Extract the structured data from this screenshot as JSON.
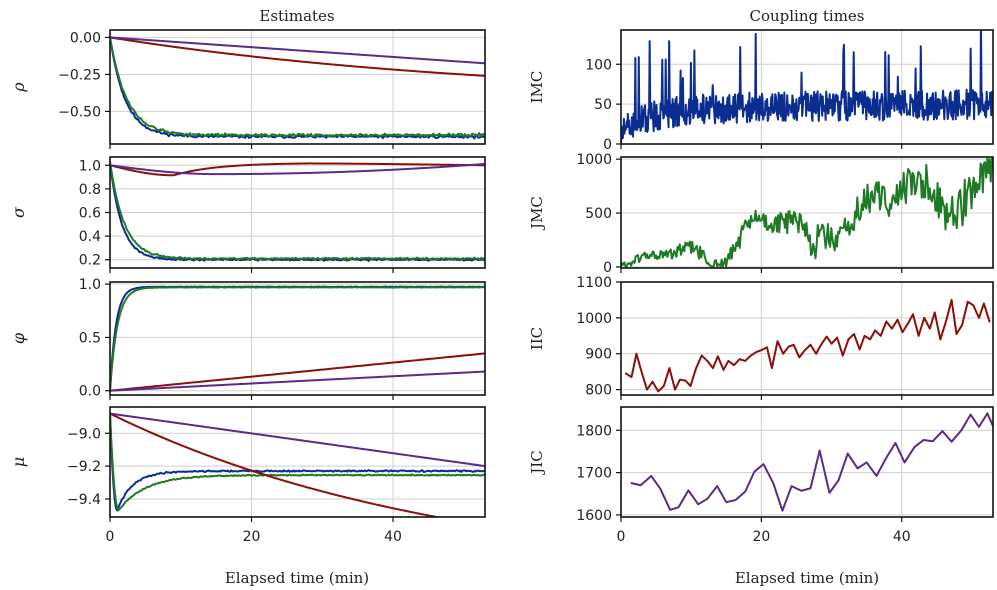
{
  "colors": {
    "blue": "#0b2d8f",
    "green": "#1e7a24",
    "red": "#8b0f0a",
    "purple": "#5a2a8c"
  },
  "column_titles": {
    "left": "Estimates",
    "right": "Coupling times"
  },
  "xlabels": {
    "left": "Elapsed time (min)",
    "right": "Elapsed time (min)"
  },
  "chart_data": [
    {
      "id": "rho",
      "type": "line",
      "column": "left",
      "row": 0,
      "ylabel": "ρ",
      "ylabel_style": "greek",
      "xlim": [
        0,
        53
      ],
      "ylim": [
        -0.72,
        0.05
      ],
      "yticks": [
        0.0,
        -0.25,
        -0.5
      ],
      "ytick_labels": [
        "0.00",
        "−0.25",
        "−0.50"
      ],
      "xticks": [
        0,
        20,
        40
      ],
      "xtick_labels": [
        "0",
        "20",
        "40"
      ],
      "series": [
        {
          "name": "blue",
          "color": "#0b2d8f",
          "curve": {
            "kind": "decay",
            "start": 0.0,
            "end": -0.67,
            "tau": 2.2,
            "noise": 0.008,
            "seed": 11
          }
        },
        {
          "name": "green",
          "color": "#1e7a24",
          "curve": {
            "kind": "decay",
            "start": 0.0,
            "end": -0.66,
            "tau": 2.4,
            "noise": 0.008,
            "seed": 12
          }
        },
        {
          "name": "red",
          "color": "#8b0f0a",
          "curve": {
            "kind": "decay",
            "start": 0.0,
            "end": -0.42,
            "tau": 55,
            "noise": 0,
            "seed": 1
          }
        },
        {
          "name": "purple",
          "color": "#5a2a8c",
          "curve": {
            "kind": "linear",
            "start": 0.0,
            "end": -0.175,
            "noise": 0,
            "seed": 1
          }
        }
      ]
    },
    {
      "id": "sigma",
      "type": "line",
      "column": "left",
      "row": 1,
      "ylabel": "σ",
      "ylabel_style": "greek",
      "xlim": [
        0,
        53
      ],
      "ylim": [
        0.13,
        1.07
      ],
      "yticks": [
        0.2,
        0.4,
        0.6,
        0.8,
        1.0
      ],
      "ytick_labels": [
        "0.2",
        "0.4",
        "0.6",
        "0.8",
        "1.0"
      ],
      "xticks": [
        0,
        20,
        40
      ],
      "xtick_labels": [
        "0",
        "20",
        "40"
      ],
      "series": [
        {
          "name": "blue",
          "color": "#0b2d8f",
          "curve": {
            "kind": "decay",
            "start": 1.02,
            "end": 0.2,
            "tau": 1.7,
            "noise": 0.006,
            "seed": 21
          }
        },
        {
          "name": "green",
          "color": "#1e7a24",
          "curve": {
            "kind": "decay",
            "start": 1.03,
            "end": 0.21,
            "tau": 2.0,
            "noise": 0.006,
            "seed": 22
          }
        },
        {
          "name": "red",
          "color": "#8b0f0a",
          "curve": {
            "kind": "sigma_red",
            "noise": 0,
            "seed": 1
          }
        },
        {
          "name": "purple",
          "color": "#5a2a8c",
          "curve": {
            "kind": "sigma_purple",
            "noise": 0,
            "seed": 1
          }
        }
      ]
    },
    {
      "id": "phi",
      "type": "line",
      "column": "left",
      "row": 2,
      "ylabel": "φ",
      "ylabel_style": "greek",
      "xlim": [
        0,
        53
      ],
      "ylim": [
        -0.04,
        1.02
      ],
      "yticks": [
        0.0,
        0.5,
        1.0
      ],
      "ytick_labels": [
        "0.0",
        "0.5",
        "1.0"
      ],
      "xticks": [
        0,
        20,
        40
      ],
      "xtick_labels": [
        "0",
        "20",
        "40"
      ],
      "series": [
        {
          "name": "blue",
          "color": "#0b2d8f",
          "curve": {
            "kind": "decay",
            "start": 0.0,
            "end": 0.975,
            "tau": 0.85,
            "noise": 0.002,
            "seed": 31
          }
        },
        {
          "name": "green",
          "color": "#1e7a24",
          "curve": {
            "kind": "decay",
            "start": 0.0,
            "end": 0.97,
            "tau": 1.05,
            "noise": 0.002,
            "seed": 32
          }
        },
        {
          "name": "red",
          "color": "#8b0f0a",
          "curve": {
            "kind": "linear",
            "start": 0.0,
            "end": 0.35,
            "noise": 0,
            "seed": 1
          }
        },
        {
          "name": "purple",
          "color": "#5a2a8c",
          "curve": {
            "kind": "linear",
            "start": 0.0,
            "end": 0.18,
            "noise": 0,
            "seed": 1
          }
        }
      ]
    },
    {
      "id": "mu",
      "type": "line",
      "column": "left",
      "row": 3,
      "ylabel": "μ",
      "ylabel_style": "greek",
      "xlim": [
        0,
        53
      ],
      "ylim": [
        -9.51,
        -8.84
      ],
      "yticks": [
        -9.0,
        -9.2,
        -9.4
      ],
      "ytick_labels": [
        "−9.0",
        "−9.2",
        "−9.4"
      ],
      "xticks": [
        0,
        20,
        40
      ],
      "xtick_labels": [
        "0",
        "20",
        "40"
      ],
      "series": [
        {
          "name": "blue",
          "color": "#0b2d8f",
          "curve": {
            "kind": "dip",
            "start": -8.88,
            "low": -9.47,
            "end": -9.23,
            "t_low": 1.0,
            "tau": 2.2,
            "noise": 0.004,
            "seed": 41
          }
        },
        {
          "name": "green",
          "color": "#1e7a24",
          "curve": {
            "kind": "dip",
            "start": -8.88,
            "low": -9.47,
            "end": -9.255,
            "t_low": 1.2,
            "tau": 3.8,
            "noise": 0.003,
            "seed": 42
          }
        },
        {
          "name": "red",
          "color": "#8b0f0a",
          "curve": {
            "kind": "decay",
            "start": -8.88,
            "end": -9.9,
            "tau": 48,
            "noise": 0,
            "seed": 1
          }
        },
        {
          "name": "purple",
          "color": "#5a2a8c",
          "curve": {
            "kind": "linear",
            "start": -8.88,
            "end": -9.2,
            "noise": 0,
            "seed": 1
          }
        }
      ]
    },
    {
      "id": "imc",
      "type": "line",
      "column": "right",
      "row": 0,
      "ylabel": "IMC",
      "ylabel_style": "serif",
      "xlim": [
        0,
        53
      ],
      "ylim": [
        0,
        143
      ],
      "yticks": [
        0,
        50,
        100
      ],
      "ytick_labels": [
        "0",
        "50",
        "100"
      ],
      "xticks": [
        0,
        20,
        40
      ],
      "xtick_labels": [
        "0",
        "20",
        "40"
      ],
      "series": [
        {
          "name": "IMC",
          "color": "#0b2d8f",
          "curve": {
            "kind": "imc",
            "n": 650,
            "seed": 51
          }
        }
      ]
    },
    {
      "id": "jmc",
      "type": "line",
      "column": "right",
      "row": 1,
      "ylabel": "JMC",
      "ylabel_style": "serif",
      "xlim": [
        0,
        53
      ],
      "ylim": [
        -10,
        1020
      ],
      "yticks": [
        0,
        500,
        1000
      ],
      "ytick_labels": [
        "0",
        "500",
        "1000"
      ],
      "xticks": [
        0,
        20,
        40
      ],
      "xtick_labels": [
        "0",
        "20",
        "40"
      ],
      "series": [
        {
          "name": "JMC",
          "color": "#1e7a24",
          "curve": {
            "kind": "jmc",
            "n": 330,
            "seed": 61
          }
        }
      ]
    },
    {
      "id": "iic",
      "type": "line",
      "column": "right",
      "row": 2,
      "ylabel": "IIC",
      "ylabel_style": "serif",
      "xlim": [
        0,
        53
      ],
      "ylim": [
        785,
        1100
      ],
      "yticks": [
        800,
        900,
        1000,
        1100
      ],
      "ytick_labels": [
        "800",
        "900",
        "1000",
        "1100"
      ],
      "xticks": [
        0,
        20,
        40
      ],
      "xtick_labels": [
        "0",
        "20",
        "40"
      ],
      "series": [
        {
          "name": "IIC",
          "color": "#8b0f0a",
          "points": {
            "x": [
              0.7,
              1.5,
              2.2,
              3.0,
              3.7,
              4.5,
              5.3,
              6.1,
              6.9,
              7.7,
              8.4,
              9.2,
              9.9,
              10.7,
              11.5,
              12.3,
              13.1,
              13.8,
              14.6,
              15.3,
              16.1,
              16.9,
              17.7,
              18.5,
              19.3,
              20.0,
              20.8,
              21.5,
              22.3,
              23.1,
              23.9,
              24.6,
              25.4,
              26.2,
              27.0,
              27.8,
              28.5,
              29.3,
              30.0,
              30.8,
              31.6,
              32.4,
              33.2,
              34.0,
              34.7,
              35.5,
              36.2,
              37.0,
              37.8,
              38.6,
              39.4,
              40.1,
              40.9,
              41.6,
              42.4,
              43.2,
              44.0,
              44.7,
              45.5,
              46.3,
              47.1,
              47.8,
              48.6,
              49.4,
              50.2,
              51.0,
              51.7,
              52.5
            ],
            "y": [
              845,
              835,
              900,
              845,
              800,
              822,
              795,
              810,
              860,
              800,
              828,
              825,
              810,
              860,
              895,
              880,
              860,
              893,
              855,
              880,
              868,
              885,
              880,
              895,
              905,
              910,
              918,
              860,
              935,
              900,
              920,
              925,
              890,
              910,
              925,
              900,
              925,
              948,
              928,
              945,
              895,
              940,
              955,
              912,
              950,
              940,
              965,
              950,
              990,
              970,
              995,
              960,
              985,
              1010,
              950,
              1000,
              970,
              1015,
              940,
              990,
              1050,
              955,
              980,
              1045,
              1035,
              1000,
              1040,
              990
            ]
          }
        }
      ]
    },
    {
      "id": "jic",
      "type": "line",
      "column": "right",
      "row": 3,
      "ylabel": "JIC",
      "ylabel_style": "serif",
      "xlim": [
        0,
        53
      ],
      "ylim": [
        1595,
        1855
      ],
      "yticks": [
        1600,
        1700,
        1800
      ],
      "ytick_labels": [
        "1600",
        "1700",
        "1800"
      ],
      "xticks": [
        0,
        20,
        40
      ],
      "xtick_labels": [
        "0",
        "20",
        "40"
      ],
      "series": [
        {
          "name": "JIC",
          "color": "#5a2a8c",
          "points": {
            "x": [
              1.5,
              2.8,
              4.3,
              5.6,
              7.0,
              8.2,
              9.6,
              11.0,
              12.3,
              13.7,
              15.0,
              16.3,
              17.7,
              19.0,
              20.3,
              21.7,
              23.0,
              24.3,
              25.7,
              27.0,
              28.3,
              29.7,
              31.0,
              32.3,
              33.7,
              35.0,
              36.4,
              37.8,
              39.1,
              40.4,
              41.8,
              43.1,
              44.4,
              45.8,
              47.1,
              48.5,
              49.8,
              51.0,
              52.2,
              53.0
            ],
            "y": [
              1675,
              1670,
              1692,
              1662,
              1612,
              1618,
              1658,
              1625,
              1638,
              1668,
              1630,
              1635,
              1655,
              1702,
              1720,
              1675,
              1610,
              1668,
              1657,
              1663,
              1752,
              1652,
              1682,
              1745,
              1710,
              1724,
              1692,
              1735,
              1770,
              1724,
              1760,
              1777,
              1774,
              1798,
              1773,
              1800,
              1837,
              1808,
              1840,
              1810
            ]
          }
        }
      ]
    }
  ]
}
